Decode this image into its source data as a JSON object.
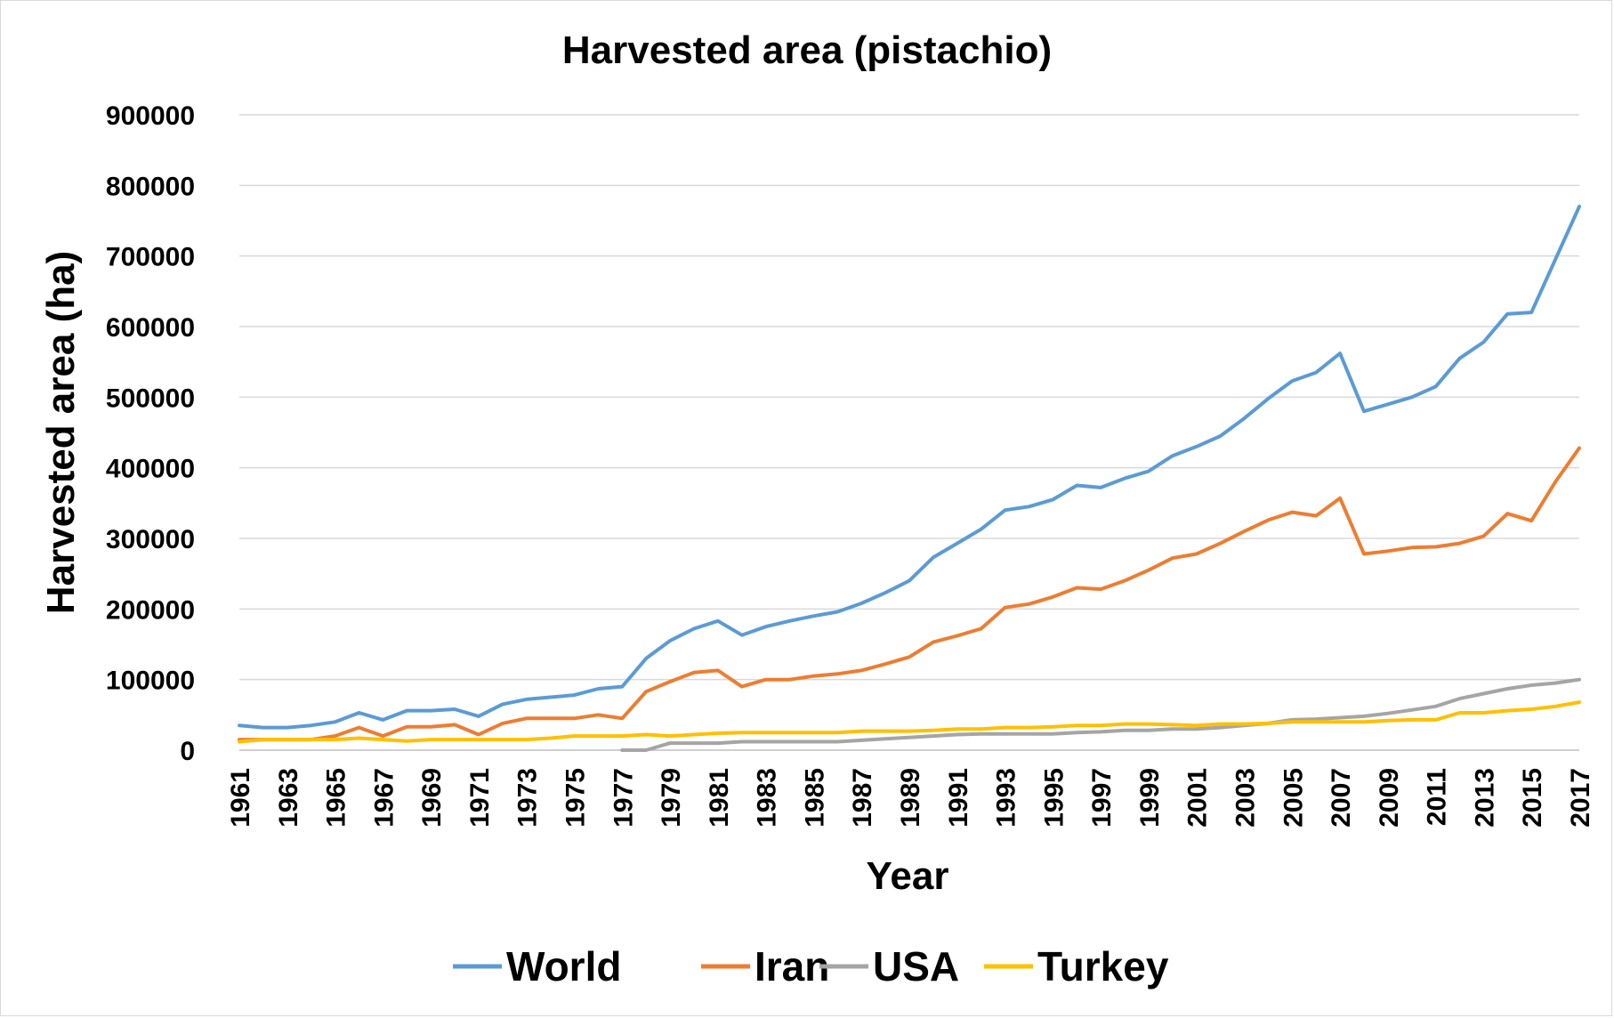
{
  "chart_data": {
    "type": "line",
    "title": "Harvested area (pistachio)",
    "xlabel": "Year",
    "ylabel": "Harvested area (ha)",
    "ylim": [
      0,
      900000
    ],
    "yticks": [
      0,
      100000,
      200000,
      300000,
      400000,
      500000,
      600000,
      700000,
      800000,
      900000
    ],
    "grid": "horizontal",
    "legend_position": "bottom",
    "x_tick_labels": [
      "1961",
      "1963",
      "1965",
      "1967",
      "1969",
      "1971",
      "1973",
      "1975",
      "1977",
      "1979",
      "1981",
      "1983",
      "1985",
      "1987",
      "1989",
      "1991",
      "1993",
      "1995",
      "1997",
      "1999",
      "2001",
      "2003",
      "2005",
      "2007",
      "2009",
      "2011",
      "2013",
      "2015",
      "2017"
    ],
    "x": [
      1961,
      1962,
      1963,
      1964,
      1965,
      1966,
      1967,
      1968,
      1969,
      1970,
      1971,
      1972,
      1973,
      1974,
      1975,
      1976,
      1977,
      1978,
      1979,
      1980,
      1981,
      1982,
      1983,
      1984,
      1985,
      1986,
      1987,
      1988,
      1989,
      1990,
      1991,
      1992,
      1993,
      1994,
      1995,
      1996,
      1997,
      1998,
      1999,
      2000,
      2001,
      2002,
      2003,
      2004,
      2005,
      2006,
      2007,
      2008,
      2009,
      2010,
      2011,
      2012,
      2013,
      2014,
      2015,
      2016,
      2017
    ],
    "series": [
      {
        "name": "World",
        "color": "#5b9bd5",
        "values": [
          35000,
          32000,
          32000,
          35000,
          40000,
          53000,
          43000,
          56000,
          56000,
          58000,
          48000,
          65000,
          72000,
          75000,
          78000,
          87000,
          90000,
          130000,
          155000,
          172000,
          183000,
          163000,
          175000,
          183000,
          190000,
          196000,
          208000,
          223000,
          240000,
          273000,
          293000,
          313000,
          340000,
          345000,
          355000,
          375000,
          372000,
          385000,
          395000,
          417000,
          430000,
          445000,
          470000,
          498000,
          523000,
          535000,
          562000,
          480000,
          490000,
          500000,
          515000,
          555000,
          578000,
          618000,
          620000,
          695000,
          770000
        ]
      },
      {
        "name": "Iran",
        "color": "#ed7d31",
        "values": [
          15000,
          15000,
          15000,
          15000,
          20000,
          32000,
          20000,
          33000,
          33000,
          36000,
          22000,
          38000,
          45000,
          45000,
          45000,
          50000,
          45000,
          83000,
          97000,
          110000,
          113000,
          90000,
          100000,
          100000,
          105000,
          108000,
          113000,
          122000,
          132000,
          153000,
          162000,
          172000,
          202000,
          207000,
          217000,
          230000,
          228000,
          240000,
          255000,
          272000,
          278000,
          293000,
          310000,
          326000,
          337000,
          332000,
          357000,
          278000,
          282000,
          287000,
          288000,
          293000,
          303000,
          335000,
          325000,
          380000,
          428000
        ]
      },
      {
        "name": "USA",
        "color": "#a5a5a5",
        "values": [
          null,
          null,
          null,
          null,
          null,
          null,
          null,
          null,
          null,
          null,
          null,
          null,
          null,
          null,
          null,
          null,
          0,
          0,
          10000,
          10000,
          10000,
          12000,
          12000,
          12000,
          12000,
          12000,
          14000,
          16000,
          18000,
          20000,
          22000,
          23000,
          23000,
          23000,
          23000,
          25000,
          26000,
          28000,
          28000,
          30000,
          30000,
          32000,
          35000,
          38000,
          43000,
          44000,
          46000,
          48000,
          52000,
          57000,
          62000,
          73000,
          80000,
          87000,
          92000,
          95000,
          100000
        ]
      },
      {
        "name": "Turkey",
        "color": "#ffc000",
        "values": [
          12000,
          15000,
          15000,
          15000,
          15000,
          17000,
          15000,
          13000,
          15000,
          15000,
          15000,
          15000,
          15000,
          17000,
          20000,
          20000,
          20000,
          22000,
          20000,
          22000,
          24000,
          25000,
          25000,
          25000,
          25000,
          25000,
          27000,
          27000,
          27000,
          28000,
          30000,
          30000,
          32000,
          32000,
          33000,
          35000,
          35000,
          37000,
          37000,
          36000,
          35000,
          37000,
          37000,
          38000,
          40000,
          40000,
          40000,
          40000,
          42000,
          43000,
          43000,
          53000,
          53000,
          56000,
          58000,
          62000,
          68000
        ]
      }
    ]
  }
}
